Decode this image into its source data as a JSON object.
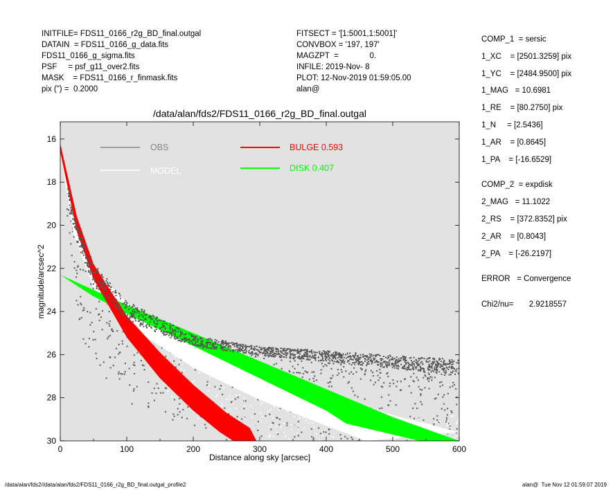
{
  "header_left": [
    "INITFILE= FDS11_0166_r2g_BD_final.outgal",
    "DATAIN  = FDS11_0166_g_data.fits",
    "FDS11_0166_g_sigma.fits",
    "PSF     = psf_g11_over2.fits",
    "MASK    = FDS11_0166_r_finmask.fits",
    "pix (\") =  0.2000"
  ],
  "header_mid": [
    "FITSECT = '[1:5001,1:5001]'",
    "CONVBOX = '197, 197'",
    "MAGZPT  =              0.",
    "INFILE: 2019-Nov- 8",
    "PLOT: 12-Nov-2019 01:59:05.00",
    "alan@"
  ],
  "header_right": [
    "COMP_1  = sersic",
    "1_XC    = [2501.3259] pix",
    "1_YC    = [2484.9500] pix",
    "1_MAG   = 10.6981",
    "1_RE    = [80.2750] pix",
    "1_N     = [2.5436]",
    "1_AR    = [0.8645]",
    "1_PA    = [-16.6529]",
    "",
    "COMP_2  = expdisk",
    "2_MAG   = 11.1022",
    "2_RS    = [372.8352] pix",
    "2_AR    = [0.8043]",
    "2_PA    = [-26.2197]",
    "",
    "ERROR   = Convergence",
    "",
    "Chi2/nu=       2.9218557"
  ],
  "footer_left": "/data/alan/fds2//data/alan/fds2/FDS11_0166_r2g_BD_final.outgal_profile2",
  "footer_right": "alan@  Tue Nov 12 01:59:07 2019",
  "colors": {
    "plot_bg": "#e2e2e2",
    "obs": "#555555",
    "model": "#ffffff",
    "bulge": "#ff0000",
    "disk": "#00ff00",
    "legend_obs_text": "#888888"
  },
  "chart_data": {
    "type": "scatter",
    "title": "/data/alan/fds2/FDS11_0166_r2g_BD_final.outgal",
    "xlabel": "Distance along sky [arcsec]",
    "ylabel": "magnitude/arcsec^2",
    "xlim": [
      0,
      600
    ],
    "ylim": [
      30,
      15.2
    ],
    "y_inverted": true,
    "xticks": [
      0,
      100,
      200,
      300,
      400,
      500,
      600
    ],
    "yticks": [
      16,
      18,
      20,
      22,
      24,
      26,
      28,
      30
    ],
    "legend": [
      {
        "label": "OBS",
        "color": "#888888"
      },
      {
        "label": "MODEL",
        "color": "#ffffff"
      },
      {
        "label": "BULGE  0.593",
        "color": "#ff0000"
      },
      {
        "label": "DISK  0.407",
        "color": "#00ff00"
      }
    ],
    "series": [
      {
        "name": "BULGE",
        "type": "band",
        "upper": [
          [
            0,
            16.2
          ],
          [
            25,
            19.6
          ],
          [
            50,
            21.8
          ],
          [
            100,
            24.2
          ],
          [
            150,
            25.9
          ],
          [
            200,
            27.4
          ],
          [
            250,
            28.7
          ],
          [
            285,
            29.4
          ],
          [
            295,
            30
          ]
        ],
        "lower": [
          [
            0,
            16.6
          ],
          [
            25,
            20.3
          ],
          [
            50,
            22.5
          ],
          [
            100,
            25.2
          ],
          [
            150,
            27.1
          ],
          [
            200,
            28.6
          ],
          [
            240,
            29.6
          ],
          [
            260,
            30
          ]
        ]
      },
      {
        "name": "DISK",
        "type": "band",
        "upper": [
          [
            0,
            22.3
          ],
          [
            50,
            23.0
          ],
          [
            100,
            23.7
          ],
          [
            200,
            25.0
          ],
          [
            300,
            26.3
          ],
          [
            400,
            27.6
          ],
          [
            500,
            28.9
          ],
          [
            600,
            30.0
          ]
        ],
        "lower": [
          [
            0,
            22.3
          ],
          [
            50,
            23.3
          ],
          [
            100,
            24.1
          ],
          [
            200,
            25.6
          ],
          [
            300,
            27.1
          ],
          [
            400,
            28.6
          ],
          [
            430,
            29.2
          ],
          [
            540,
            30.0
          ]
        ]
      },
      {
        "name": "MODEL",
        "type": "band",
        "upper": [
          [
            0,
            16.2
          ],
          [
            20,
            19.8
          ],
          [
            50,
            22.0
          ],
          [
            100,
            23.6
          ],
          [
            200,
            25.4
          ],
          [
            300,
            26.7
          ],
          [
            400,
            27.8
          ],
          [
            500,
            28.8
          ],
          [
            600,
            29.6
          ]
        ],
        "lower": [
          [
            0,
            16.6
          ],
          [
            20,
            20.4
          ],
          [
            50,
            22.9
          ],
          [
            100,
            24.6
          ],
          [
            200,
            26.6
          ],
          [
            300,
            28.1
          ],
          [
            400,
            29.3
          ],
          [
            460,
            30.0
          ]
        ]
      },
      {
        "name": "OBS",
        "type": "band",
        "upper": [
          [
            0,
            16.2
          ],
          [
            20,
            19.6
          ],
          [
            50,
            21.8
          ],
          [
            100,
            23.5
          ],
          [
            200,
            25.1
          ],
          [
            300,
            25.6
          ],
          [
            400,
            25.8
          ],
          [
            500,
            26.0
          ],
          [
            600,
            26.2
          ]
        ],
        "lower": [
          [
            0,
            16.6
          ],
          [
            20,
            20.4
          ],
          [
            50,
            22.8
          ],
          [
            100,
            24.4
          ],
          [
            200,
            25.6
          ],
          [
            300,
            26.0
          ],
          [
            400,
            26.3
          ],
          [
            500,
            26.6
          ],
          [
            600,
            27.0
          ]
        ]
      }
    ]
  }
}
